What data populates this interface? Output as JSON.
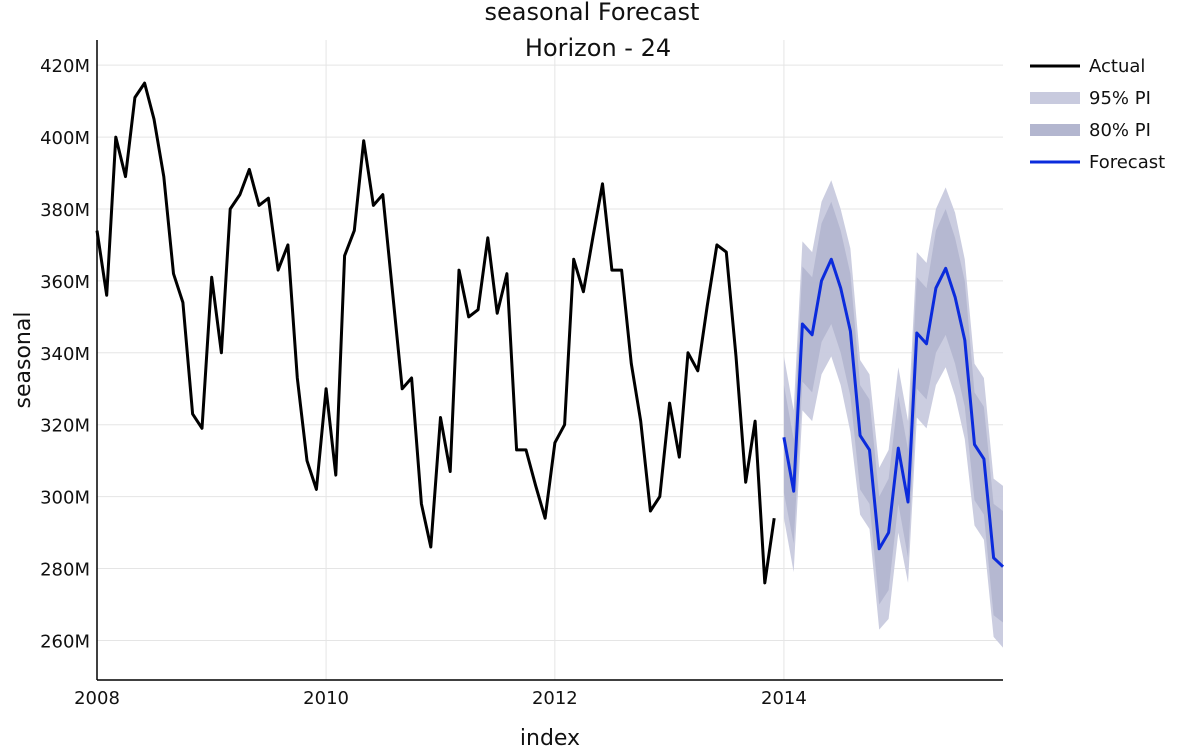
{
  "chart_data": {
    "type": "line",
    "title": "seasonal Forecast",
    "subtitle": "Horizon - 24",
    "xlabel": "index",
    "ylabel": "seasonal",
    "xlim": [
      "2008-01-01",
      "2015-12-01"
    ],
    "ylim": [
      249000000,
      427000000
    ],
    "x_ticks": [
      {
        "date": "2008-01-01",
        "label": "2008"
      },
      {
        "date": "2010-01-01",
        "label": "2010"
      },
      {
        "date": "2012-01-01",
        "label": "2012"
      },
      {
        "date": "2014-01-01",
        "label": "2014"
      }
    ],
    "y_ticks": [
      {
        "value": 260000000,
        "label": "260M"
      },
      {
        "value": 280000000,
        "label": "280M"
      },
      {
        "value": 300000000,
        "label": "300M"
      },
      {
        "value": 320000000,
        "label": "320M"
      },
      {
        "value": 340000000,
        "label": "340M"
      },
      {
        "value": 360000000,
        "label": "360M"
      },
      {
        "value": 380000000,
        "label": "380M"
      },
      {
        "value": 400000000,
        "label": "400M"
      },
      {
        "value": 420000000,
        "label": "420M"
      }
    ],
    "grid": true,
    "legend_position": "top-right",
    "series": [
      {
        "name": "Actual",
        "color": "#000000",
        "start": "2008-01",
        "values": [
          374,
          356,
          400,
          389,
          411,
          415,
          405,
          389,
          362,
          354,
          323,
          319,
          361,
          340,
          380,
          384,
          391,
          381,
          383,
          363,
          370,
          333,
          310,
          302,
          330,
          306,
          367,
          374,
          399,
          381,
          384,
          357,
          330,
          333,
          298,
          286,
          322,
          307,
          363,
          350,
          352,
          372,
          351,
          362,
          313,
          313,
          303,
          294,
          315,
          320,
          366,
          357,
          372,
          387,
          363,
          363,
          337,
          321,
          296,
          300,
          326,
          311,
          340,
          335,
          353,
          370,
          368,
          339,
          304,
          321,
          276,
          294
        ]
      },
      {
        "name": "Forecast",
        "color": "#0b2bdc",
        "start": "2014-01",
        "values": [
          316.5,
          301.5,
          348,
          345,
          360,
          366,
          358,
          346,
          317,
          313,
          285.5,
          290,
          313.5,
          298.5,
          345.5,
          342.5,
          358,
          363.5,
          355.5,
          343.5,
          314.5,
          310.5,
          283,
          280.5
        ]
      }
    ],
    "intervals": [
      {
        "name": "95% PI",
        "color": "#c8cade",
        "start": "2014-01",
        "lower": [
          294,
          279,
          324,
          321,
          334,
          339,
          331,
          318,
          295,
          291,
          263,
          266,
          290,
          276,
          322,
          319,
          331,
          336,
          328,
          316,
          292,
          288,
          261,
          258
        ],
        "upper": [
          339,
          324,
          371,
          368,
          382,
          388,
          380,
          369,
          338,
          334,
          308,
          313,
          336,
          321,
          368,
          365,
          380,
          386,
          379,
          366,
          337,
          333,
          305,
          303
        ]
      },
      {
        "name": "80% PI",
        "color": "#b3b6cf",
        "start": "2014-01",
        "lower": [
          301,
          287,
          332,
          329,
          343,
          348,
          340,
          328,
          302,
          298,
          270,
          274,
          298,
          283,
          330,
          327,
          340,
          345,
          337,
          325,
          299,
          295,
          267,
          265
        ],
        "upper": [
          331,
          316,
          364,
          361,
          376,
          382,
          374,
          362,
          331,
          327,
          300,
          305,
          328,
          313,
          361,
          358,
          374,
          380,
          372,
          360,
          329,
          325,
          298,
          296
        ]
      }
    ],
    "legend": [
      {
        "label": "Actual",
        "kind": "line",
        "color": "#000000"
      },
      {
        "label": "95% PI",
        "kind": "band",
        "color": "#c8cade"
      },
      {
        "label": "80% PI",
        "kind": "band",
        "color": "#b3b6cf"
      },
      {
        "label": "Forecast",
        "kind": "line",
        "color": "#0b2bdc"
      }
    ],
    "value_unit": 1000000
  }
}
